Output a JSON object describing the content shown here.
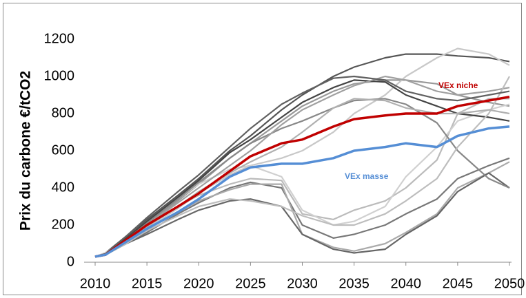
{
  "chart_data": {
    "type": "line",
    "y_axis_label": "Prix du carbone €/tCO2",
    "x": [
      2010,
      2011,
      2013,
      2015,
      2018,
      2020,
      2023,
      2025,
      2028,
      2030,
      2033,
      2035,
      2038,
      2040,
      2043,
      2045,
      2048,
      2050
    ],
    "xlim": [
      2010,
      2050
    ],
    "xticks": [
      2010,
      2015,
      2020,
      2025,
      2030,
      2035,
      2040,
      2045,
      2050
    ],
    "ylim": [
      0,
      1200
    ],
    "yticks": [
      0,
      200,
      400,
      600,
      800,
      1000,
      1200
    ],
    "grid": false,
    "series": [
      {
        "color": "#555555",
        "values": [
          30,
          50,
          140,
          230,
          360,
          450,
          600,
          680,
          820,
          900,
          1000,
          1050,
          1100,
          1120,
          1120,
          1110,
          1100,
          1080
        ]
      },
      {
        "color": "#999999",
        "values": [
          30,
          45,
          120,
          200,
          330,
          420,
          560,
          640,
          760,
          840,
          920,
          960,
          980,
          980,
          960,
          900,
          860,
          840
        ]
      },
      {
        "color": "#c8c8c8",
        "values": [
          30,
          40,
          110,
          180,
          290,
          370,
          470,
          520,
          560,
          600,
          700,
          800,
          900,
          1000,
          1100,
          1150,
          1120,
          1060
        ]
      },
      {
        "color": "#777777",
        "values": [
          30,
          40,
          100,
          160,
          260,
          320,
          400,
          430,
          400,
          200,
          130,
          150,
          200,
          260,
          340,
          450,
          520,
          560
        ]
      },
      {
        "color": "#aaaaaa",
        "values": [
          30,
          40,
          110,
          180,
          270,
          330,
          390,
          420,
          420,
          150,
          80,
          60,
          100,
          160,
          260,
          400,
          480,
          540
        ]
      },
      {
        "color": "#666666",
        "values": [
          30,
          40,
          100,
          150,
          230,
          280,
          330,
          340,
          300,
          150,
          70,
          50,
          70,
          150,
          250,
          380,
          480,
          400
        ]
      },
      {
        "color": "#bbbbbb",
        "values": [
          30,
          45,
          120,
          200,
          300,
          360,
          420,
          450,
          440,
          260,
          230,
          280,
          330,
          400,
          550,
          800,
          880,
          880
        ]
      },
      {
        "color": "#d0d0d0",
        "values": [
          30,
          50,
          130,
          220,
          340,
          420,
          500,
          520,
          460,
          280,
          200,
          220,
          300,
          460,
          620,
          760,
          820,
          850
        ]
      },
      {
        "color": "#888888",
        "values": [
          30,
          40,
          120,
          210,
          340,
          430,
          560,
          640,
          720,
          760,
          830,
          870,
          880,
          850,
          750,
          600,
          450,
          400
        ]
      },
      {
        "color": "#444444",
        "values": [
          30,
          45,
          130,
          220,
          350,
          440,
          590,
          660,
          780,
          860,
          940,
          980,
          970,
          900,
          840,
          800,
          780,
          760
        ]
      },
      {
        "color": "#a0a0a0",
        "values": [
          30,
          40,
          120,
          200,
          320,
          400,
          520,
          600,
          740,
          820,
          900,
          950,
          1000,
          980,
          920,
          900,
          920,
          940
        ]
      },
      {
        "color": "#bdbdbd",
        "values": [
          30,
          40,
          100,
          170,
          250,
          300,
          340,
          330,
          300,
          250,
          200,
          200,
          260,
          330,
          450,
          620,
          800,
          1000
        ]
      },
      {
        "color": "#606060",
        "values": [
          30,
          45,
          140,
          240,
          380,
          470,
          620,
          720,
          850,
          910,
          990,
          1000,
          980,
          920,
          880,
          870,
          900,
          920
        ]
      },
      {
        "color": "#b0b0b0",
        "values": [
          30,
          40,
          110,
          190,
          300,
          380,
          480,
          540,
          620,
          700,
          830,
          880,
          870,
          830,
          800,
          800,
          820,
          800
        ]
      },
      {
        "name": "VEx niche",
        "color": "#c00000",
        "values": [
          30,
          40,
          120,
          200,
          300,
          370,
          490,
          570,
          640,
          660,
          730,
          770,
          790,
          800,
          800,
          840,
          870,
          890
        ]
      },
      {
        "name": "VEx masse",
        "color": "#558ed5",
        "values": [
          30,
          40,
          110,
          180,
          270,
          340,
          460,
          510,
          530,
          530,
          560,
          600,
          620,
          640,
          620,
          680,
          720,
          730
        ]
      }
    ]
  }
}
